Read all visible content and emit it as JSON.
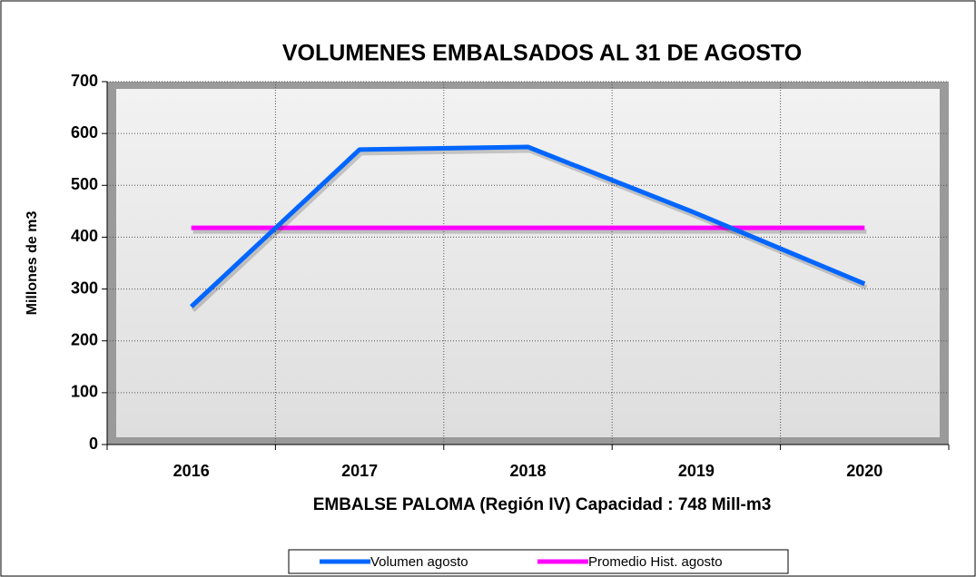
{
  "chart_data": {
    "type": "line",
    "title": "VOLUMENES EMBALSADOS  AL 31 DE AGOSTO",
    "x_label": "EMBALSE PALOMA (Región IV) Capacidad : 748 Mill-m3",
    "y_label": "Millones de m3",
    "categories": [
      "2016",
      "2017",
      "2018",
      "2019",
      "2020"
    ],
    "series": [
      {
        "name": "Volumen agosto",
        "color": "#0066ff",
        "values": [
          266,
          569,
          574,
          446,
          310
        ]
      },
      {
        "name": "Promedio Hist. agosto",
        "color": "#ff00ff",
        "values": [
          418,
          418,
          418,
          418,
          418
        ]
      }
    ],
    "ylim": [
      0,
      700
    ],
    "yticks": [
      0,
      100,
      200,
      300,
      400,
      500,
      600,
      700
    ],
    "grid": true,
    "legend": "bottom"
  }
}
